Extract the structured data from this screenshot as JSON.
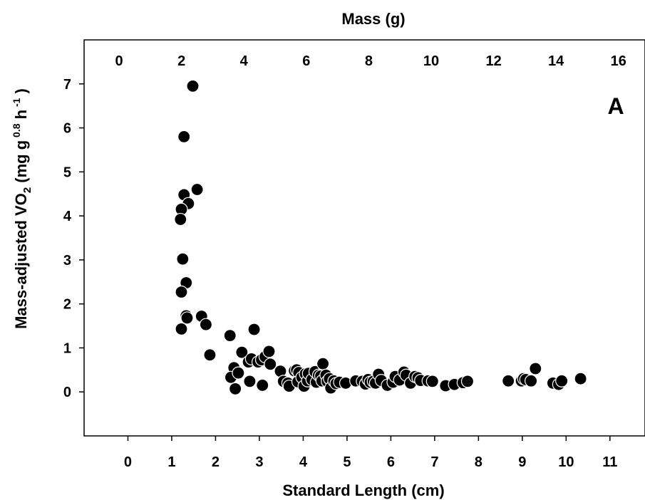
{
  "chart_data": {
    "type": "scatter",
    "title": "",
    "panel_label": "A",
    "xlabel": "Standard Length (cm)",
    "x2label": "Mass (g)",
    "ylabel": {
      "main": "Mass-adjusted VO",
      "sub": "2",
      "pre": " (mg g",
      "sup1": " 0.8",
      "mid": " h",
      "sup2": " -1",
      "post": " )"
    },
    "xlim": [
      -1,
      11.8
    ],
    "ylim": [
      -1,
      8
    ],
    "x2lim": [
      -1.12,
      16.85
    ],
    "x_ticks": [
      0,
      1,
      2,
      3,
      4,
      5,
      6,
      7,
      8,
      9,
      10,
      11
    ],
    "x_tick_labels": [
      "0",
      "1",
      "2",
      "3",
      "4",
      "5",
      "6",
      "7",
      "8",
      "9",
      "10",
      "11"
    ],
    "x2_ticks": [
      0,
      2,
      4,
      6,
      8,
      10,
      12,
      14,
      16
    ],
    "x2_tick_labels": [
      "0",
      "2",
      "4",
      "6",
      "8",
      "10",
      "12",
      "14",
      "16"
    ],
    "y_ticks": [
      0,
      1,
      2,
      3,
      4,
      5,
      6,
      7
    ],
    "y_tick_labels": [
      "0",
      "1",
      "2",
      "3",
      "4",
      "5",
      "6",
      "7"
    ],
    "grid": false,
    "legend": "none",
    "marker_color": "#000000",
    "marker_edge": "#ffffff",
    "points": [
      [
        1.48,
        6.95
      ],
      [
        1.28,
        5.8
      ],
      [
        1.58,
        4.6
      ],
      [
        1.28,
        4.48
      ],
      [
        1.38,
        4.28
      ],
      [
        1.22,
        4.15
      ],
      [
        1.2,
        3.92
      ],
      [
        1.25,
        3.02
      ],
      [
        1.33,
        2.48
      ],
      [
        1.22,
        2.27
      ],
      [
        1.33,
        1.73
      ],
      [
        1.35,
        1.68
      ],
      [
        1.68,
        1.72
      ],
      [
        1.78,
        1.53
      ],
      [
        1.22,
        1.43
      ],
      [
        1.87,
        0.84
      ],
      [
        2.33,
        1.28
      ],
      [
        2.88,
        1.42
      ],
      [
        2.42,
        0.55
      ],
      [
        2.35,
        0.33
      ],
      [
        2.45,
        0.07
      ],
      [
        2.52,
        0.43
      ],
      [
        2.6,
        0.9
      ],
      [
        2.75,
        0.68
      ],
      [
        2.78,
        0.24
      ],
      [
        2.82,
        0.75
      ],
      [
        2.97,
        0.68
      ],
      [
        3.05,
        0.73
      ],
      [
        3.07,
        0.15
      ],
      [
        3.13,
        0.8
      ],
      [
        3.22,
        0.92
      ],
      [
        3.25,
        0.63
      ],
      [
        3.48,
        0.47
      ],
      [
        3.55,
        0.24
      ],
      [
        3.65,
        0.2
      ],
      [
        3.68,
        0.13
      ],
      [
        3.8,
        0.48
      ],
      [
        3.85,
        0.5
      ],
      [
        3.9,
        0.44
      ],
      [
        3.88,
        0.23
      ],
      [
        3.97,
        0.33
      ],
      [
        4.02,
        0.13
      ],
      [
        4.05,
        0.41
      ],
      [
        4.1,
        0.25
      ],
      [
        4.12,
        0.42
      ],
      [
        4.2,
        0.28
      ],
      [
        4.27,
        0.46
      ],
      [
        4.3,
        0.22
      ],
      [
        4.35,
        0.38
      ],
      [
        4.4,
        0.36
      ],
      [
        4.43,
        0.25
      ],
      [
        4.45,
        0.64
      ],
      [
        4.52,
        0.38
      ],
      [
        4.55,
        0.24
      ],
      [
        4.6,
        0.3
      ],
      [
        4.63,
        0.09
      ],
      [
        4.7,
        0.25
      ],
      [
        4.75,
        0.19
      ],
      [
        4.83,
        0.22
      ],
      [
        4.97,
        0.2
      ],
      [
        5.2,
        0.25
      ],
      [
        5.35,
        0.24
      ],
      [
        5.42,
        0.18
      ],
      [
        5.48,
        0.28
      ],
      [
        5.53,
        0.22
      ],
      [
        5.6,
        0.24
      ],
      [
        5.65,
        0.2
      ],
      [
        5.72,
        0.4
      ],
      [
        5.78,
        0.26
      ],
      [
        5.92,
        0.15
      ],
      [
        6.05,
        0.22
      ],
      [
        6.1,
        0.35
      ],
      [
        6.2,
        0.27
      ],
      [
        6.3,
        0.45
      ],
      [
        6.35,
        0.38
      ],
      [
        6.45,
        0.2
      ],
      [
        6.55,
        0.35
      ],
      [
        6.62,
        0.32
      ],
      [
        6.68,
        0.26
      ],
      [
        6.85,
        0.25
      ],
      [
        6.95,
        0.24
      ],
      [
        7.25,
        0.14
      ],
      [
        7.45,
        0.17
      ],
      [
        7.65,
        0.21
      ],
      [
        7.75,
        0.24
      ],
      [
        8.68,
        0.25
      ],
      [
        8.98,
        0.25
      ],
      [
        9.03,
        0.3
      ],
      [
        9.08,
        0.28
      ],
      [
        9.2,
        0.25
      ],
      [
        9.3,
        0.53
      ],
      [
        9.7,
        0.2
      ],
      [
        9.83,
        0.17
      ],
      [
        9.9,
        0.25
      ],
      [
        10.33,
        0.3
      ]
    ]
  }
}
